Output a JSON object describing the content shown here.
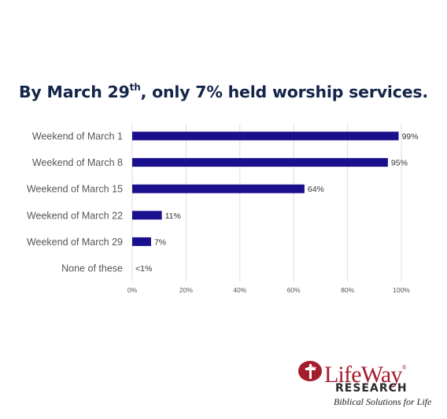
{
  "title": {
    "prefix": "By March 29",
    "superscript": "th",
    "suffix": ", only 7% held worship services."
  },
  "chart_data": {
    "type": "bar",
    "orientation": "horizontal",
    "categories": [
      "Weekend of March 1",
      "Weekend of March 8",
      "Weekend of March 15",
      "Weekend of March 22",
      "Weekend of March 29",
      "None of these"
    ],
    "values": [
      99,
      95,
      64,
      11,
      7,
      0.5
    ],
    "value_labels": [
      "99%",
      "95%",
      "64%",
      "11%",
      "7%",
      "<1%"
    ],
    "xlim": [
      0,
      100
    ],
    "xticks": [
      0,
      20,
      40,
      60,
      80,
      100
    ],
    "xtick_labels": [
      "0%",
      "20%",
      "40%",
      "60%",
      "80%",
      "100%"
    ],
    "grid": true,
    "bar_color": "#1a0f8c",
    "legend": "none"
  },
  "logo": {
    "name": "LifeWay",
    "registered": "®",
    "subtitle": "RESEARCH",
    "tagline": "Biblical Solutions for Life",
    "colors": {
      "brand_red": "#a51d2d",
      "dark": "#2a2a2a"
    },
    "icon": "cross-flame-icon"
  }
}
